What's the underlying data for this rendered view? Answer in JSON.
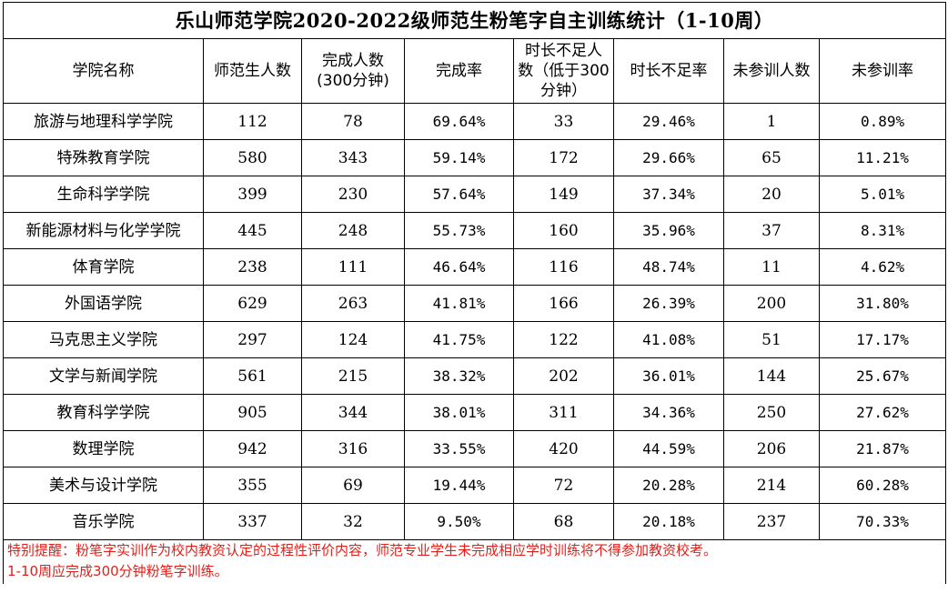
{
  "title": "乐山师范学院2020-2022级师范生粉笔字自主训练统计（1-10周）",
  "headers": {
    "college": "学院名称",
    "students": "师范生人数",
    "completed_line1": "完成人数",
    "completed_line2": "(300分钟)",
    "completion_rate": "完成率",
    "short_line1": "时长不足人",
    "short_line2": "数（低于300",
    "short_line3": "分钟）",
    "short_rate": "时长不足率",
    "absent": "未参训人数",
    "absent_rate": "未参训率"
  },
  "rows": [
    {
      "college": "旅游与地理科学学院",
      "students": "112",
      "completed": "78",
      "completion_rate": "69.64%",
      "short": "33",
      "short_rate": "29.46%",
      "absent": "1",
      "absent_rate": "0.89%"
    },
    {
      "college": "特殊教育学院",
      "students": "580",
      "completed": "343",
      "completion_rate": "59.14%",
      "short": "172",
      "short_rate": "29.66%",
      "absent": "65",
      "absent_rate": "11.21%"
    },
    {
      "college": "生命科学学院",
      "students": "399",
      "completed": "230",
      "completion_rate": "57.64%",
      "short": "149",
      "short_rate": "37.34%",
      "absent": "20",
      "absent_rate": "5.01%"
    },
    {
      "college": "新能源材料与化学学院",
      "students": "445",
      "completed": "248",
      "completion_rate": "55.73%",
      "short": "160",
      "short_rate": "35.96%",
      "absent": "37",
      "absent_rate": "8.31%"
    },
    {
      "college": "体育学院",
      "students": "238",
      "completed": "111",
      "completion_rate": "46.64%",
      "short": "116",
      "short_rate": "48.74%",
      "absent": "11",
      "absent_rate": "4.62%"
    },
    {
      "college": "外国语学院",
      "students": "629",
      "completed": "263",
      "completion_rate": "41.81%",
      "short": "166",
      "short_rate": "26.39%",
      "absent": "200",
      "absent_rate": "31.80%"
    },
    {
      "college": "马克思主义学院",
      "students": "297",
      "completed": "124",
      "completion_rate": "41.75%",
      "short": "122",
      "short_rate": "41.08%",
      "absent": "51",
      "absent_rate": "17.17%"
    },
    {
      "college": "文学与新闻学院",
      "students": "561",
      "completed": "215",
      "completion_rate": "38.32%",
      "short": "202",
      "short_rate": "36.01%",
      "absent": "144",
      "absent_rate": "25.67%"
    },
    {
      "college": "教育科学学院",
      "students": "905",
      "completed": "344",
      "completion_rate": "38.01%",
      "short": "311",
      "short_rate": "34.36%",
      "absent": "250",
      "absent_rate": "27.62%"
    },
    {
      "college": "数理学院",
      "students": "942",
      "completed": "316",
      "completion_rate": "33.55%",
      "short": "420",
      "short_rate": "44.59%",
      "absent": "206",
      "absent_rate": "21.87%"
    },
    {
      "college": "美术与设计学院",
      "students": "355",
      "completed": "69",
      "completion_rate": "19.44%",
      "short": "72",
      "short_rate": "20.28%",
      "absent": "214",
      "absent_rate": "60.28%"
    },
    {
      "college": "音乐学院",
      "students": "337",
      "completed": "32",
      "completion_rate": "9.50%",
      "short": "68",
      "short_rate": "20.18%",
      "absent": "237",
      "absent_rate": "70.33%"
    }
  ],
  "note": {
    "line1": "特别提醒：粉笔字实训作为校内教资认定的过程性评价内容，师范专业学生未完成相应学时训练将不得参加教资校考。",
    "line2": "1-10周应完成300分钟粉笔字训练。"
  },
  "colors": {
    "note_text": "#e0201a",
    "grid": "#000000"
  }
}
